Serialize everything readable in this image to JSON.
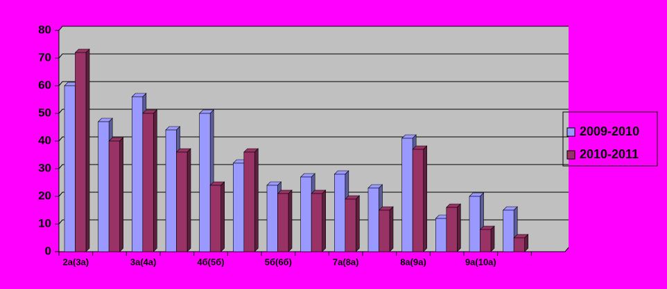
{
  "chart_data": {
    "type": "bar3d",
    "categories": [
      "2а(3а)",
      null,
      "3а(4а)",
      null,
      "4б(5б)",
      null,
      "5б(6б)",
      null,
      "7а(8а)",
      null,
      "8а(9а)",
      null,
      "9а(10а)",
      null,
      null
    ],
    "series": [
      {
        "name": "2009-2010",
        "color": "#9999ff",
        "values": [
          60,
          47,
          56,
          44,
          50,
          32,
          24,
          27,
          28,
          23,
          41,
          12,
          20,
          15,
          null
        ]
      },
      {
        "name": "2010-2011",
        "color": "#993366",
        "values": [
          72,
          40,
          50,
          36,
          24,
          36,
          21,
          21,
          19,
          15,
          37,
          16,
          8,
          5,
          null
        ]
      }
    ],
    "ylim": [
      0,
      80
    ],
    "yticks": [
      0,
      10,
      20,
      30,
      40,
      50,
      60,
      70,
      80
    ],
    "grid": true,
    "legend": "right"
  }
}
